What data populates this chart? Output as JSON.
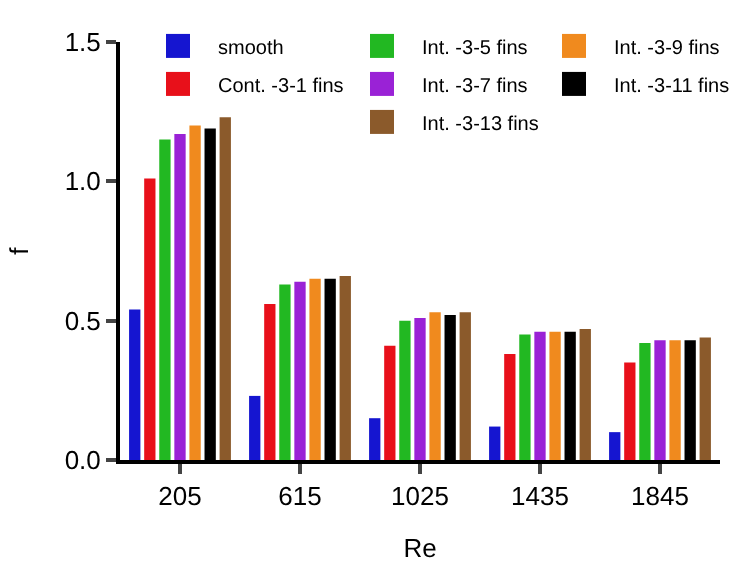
{
  "chart_data": {
    "type": "bar",
    "xlabel": "Re",
    "ylabel": "f",
    "categories": [
      "205",
      "615",
      "1025",
      "1435",
      "1845"
    ],
    "series": [
      {
        "name": "smooth",
        "color": "#1515d0",
        "values": [
          0.54,
          0.23,
          0.15,
          0.12,
          0.1
        ]
      },
      {
        "name": "Cont. -3-1 fins",
        "color": "#e8101a",
        "values": [
          1.01,
          0.56,
          0.41,
          0.38,
          0.35
        ]
      },
      {
        "name": "Int. -3-5 fins",
        "color": "#22b822",
        "values": [
          1.15,
          0.63,
          0.5,
          0.45,
          0.42
        ]
      },
      {
        "name": "Int. -3-7 fins",
        "color": "#9a22d6",
        "values": [
          1.17,
          0.64,
          0.51,
          0.46,
          0.43
        ]
      },
      {
        "name": "Int. -3-9 fins",
        "color": "#f08a1e",
        "values": [
          1.2,
          0.65,
          0.53,
          0.46,
          0.43
        ]
      },
      {
        "name": "Int. -3-11 fins",
        "color": "#000000",
        "values": [
          1.19,
          0.65,
          0.52,
          0.46,
          0.43
        ]
      },
      {
        "name": "Int. -3-13 fins",
        "color": "#8b5a2b",
        "values": [
          1.23,
          0.66,
          0.53,
          0.47,
          0.44
        ]
      }
    ],
    "ylim": [
      0,
      1.5
    ],
    "yticks": [
      {
        "value": 0,
        "label": "0.0"
      },
      0.5,
      {
        "value": 1,
        "label": "1.0"
      },
      1.5
    ],
    "legend": "top"
  }
}
